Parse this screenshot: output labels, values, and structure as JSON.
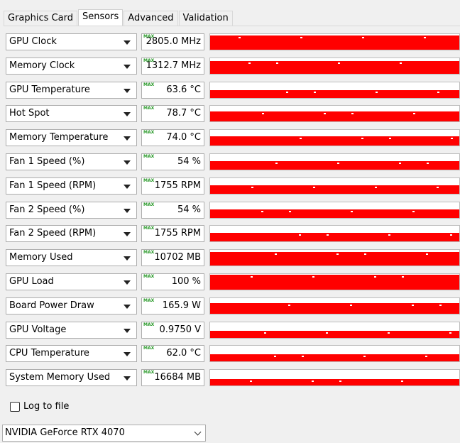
{
  "tabs": [
    {
      "label": "Graphics Card",
      "active": false
    },
    {
      "label": "Sensors",
      "active": true
    },
    {
      "label": "Advanced",
      "active": false
    },
    {
      "label": "Validation",
      "active": false
    }
  ],
  "max_badge": "MAX",
  "sensors": [
    {
      "name": "GPU Clock",
      "value": "2805.0 MHz",
      "level": 0.9
    },
    {
      "name": "Memory Clock",
      "value": "1312.7 MHz",
      "level": 0.8
    },
    {
      "name": "GPU Temperature",
      "value": "63.6 °C",
      "level": 0.5
    },
    {
      "name": "Hot Spot",
      "value": "78.7 °C",
      "level": 0.65
    },
    {
      "name": "Memory Temperature",
      "value": "74.0 °C",
      "level": 0.6
    },
    {
      "name": "Fan 1 Speed (%)",
      "value": "54 %",
      "level": 0.55
    },
    {
      "name": "Fan 1 Speed (RPM)",
      "value": "1755 RPM",
      "level": 0.55
    },
    {
      "name": "Fan 2 Speed (%)",
      "value": "54 %",
      "level": 0.55
    },
    {
      "name": "Fan 2 Speed (RPM)",
      "value": "1755 RPM",
      "level": 0.55
    },
    {
      "name": "Memory Used",
      "value": "10702 MB",
      "level": 0.85
    },
    {
      "name": "GPU Load",
      "value": "100 %",
      "level": 0.95
    },
    {
      "name": "Board Power Draw",
      "value": "165.9 W",
      "level": 0.7
    },
    {
      "name": "GPU Voltage",
      "value": "0.9750 V",
      "level": 0.45
    },
    {
      "name": "CPU Temperature",
      "value": "62.0 °C",
      "level": 0.45
    },
    {
      "name": "System Memory Used",
      "value": "16684 MB",
      "level": 0.4
    }
  ],
  "log_to_file": {
    "label": "Log to file",
    "checked": false
  },
  "device_select": {
    "value": "NVIDIA GeForce RTX 4070"
  },
  "colors": {
    "graph_fill": "#ff0000",
    "max_badge": "#2a9a2a"
  }
}
